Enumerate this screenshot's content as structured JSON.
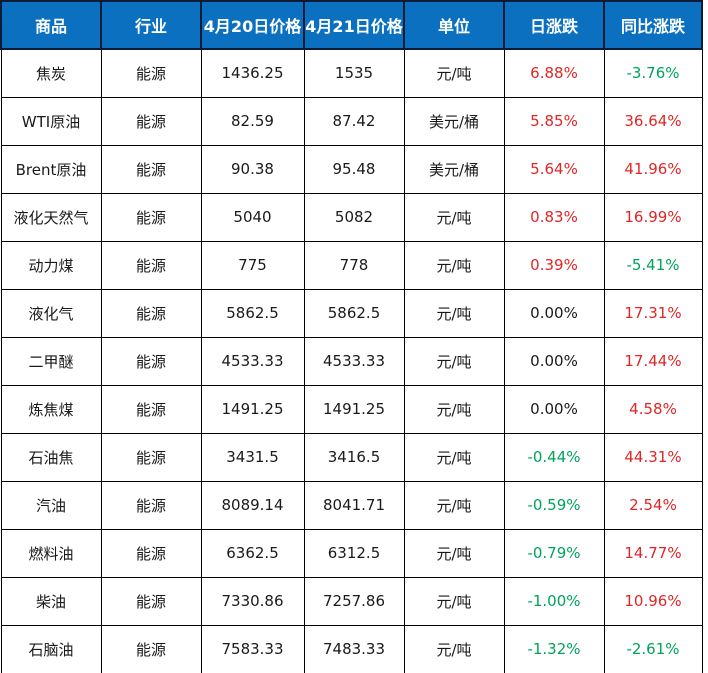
{
  "chart_data": {
    "type": "table",
    "title": "",
    "columns": [
      "商品",
      "行业",
      "4月20日价格",
      "4月21日价格",
      "单位",
      "日涨跌",
      "同比涨跌"
    ],
    "column_keys": [
      "commodity",
      "industry",
      "price_apr20",
      "price_apr21",
      "unit",
      "daily_change",
      "yoy_change"
    ],
    "rows": [
      [
        "焦炭",
        "能源",
        "1436.25",
        "1535",
        "元/吨",
        "6.88%",
        "-3.76%"
      ],
      [
        "WTI原油",
        "能源",
        "82.59",
        "87.42",
        "美元/桶",
        "5.85%",
        "36.64%"
      ],
      [
        "Brent原油",
        "能源",
        "90.38",
        "95.48",
        "美元/桶",
        "5.64%",
        "41.96%"
      ],
      [
        "液化天然气",
        "能源",
        "5040",
        "5082",
        "元/吨",
        "0.83%",
        "16.99%"
      ],
      [
        "动力煤",
        "能源",
        "775",
        "778",
        "元/吨",
        "0.39%",
        "-5.41%"
      ],
      [
        "液化气",
        "能源",
        "5862.5",
        "5862.5",
        "元/吨",
        "0.00%",
        "17.31%"
      ],
      [
        "二甲醚",
        "能源",
        "4533.33",
        "4533.33",
        "元/吨",
        "0.00%",
        "17.44%"
      ],
      [
        "炼焦煤",
        "能源",
        "1491.25",
        "1491.25",
        "元/吨",
        "0.00%",
        "4.58%"
      ],
      [
        "石油焦",
        "能源",
        "3431.5",
        "3416.5",
        "元/吨",
        "-0.44%",
        "44.31%"
      ],
      [
        "汽油",
        "能源",
        "8089.14",
        "8041.71",
        "元/吨",
        "-0.59%",
        "2.54%"
      ],
      [
        "燃料油",
        "能源",
        "6362.5",
        "6312.5",
        "元/吨",
        "-0.79%",
        "14.77%"
      ],
      [
        "柴油",
        "能源",
        "7330.86",
        "7257.86",
        "元/吨",
        "-1.00%",
        "10.96%"
      ],
      [
        "石脑油",
        "能源",
        "7583.33",
        "7483.33",
        "元/吨",
        "-1.32%",
        "-2.61%"
      ]
    ]
  },
  "colors": {
    "header_bg": "#0b70c0",
    "header_text": "#ffffff",
    "header_border": "#0c1c34",
    "body_border": "#000000",
    "positive_change": "#e02626",
    "negative_change": "#00a35c",
    "zero_change": "#1a1a1a"
  }
}
